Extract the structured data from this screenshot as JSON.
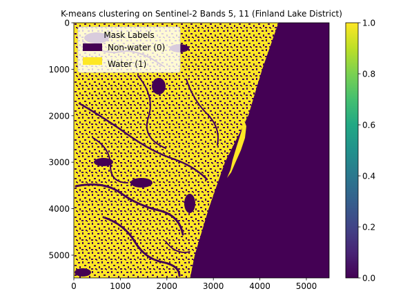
{
  "chart_data": {
    "type": "heatmap",
    "title": "K-means clustering on Sentinel-2 Bands 5, 11 (Finland Lake District)",
    "xlim": [
      0,
      5490
    ],
    "ylim": [
      5490,
      0
    ],
    "x_ticks": [
      0,
      1000,
      2000,
      3000,
      4000,
      5000
    ],
    "y_ticks": [
      0,
      1000,
      2000,
      3000,
      4000,
      5000
    ],
    "x_tick_labels": [
      "0",
      "1000",
      "2000",
      "3000",
      "4000",
      "5000"
    ],
    "y_tick_labels": [
      "0",
      "1000",
      "2000",
      "3000",
      "4000",
      "5000"
    ],
    "no_data_boundary": [
      [
        4400,
        0
      ],
      [
        4050,
        1000
      ],
      [
        3750,
        2000
      ],
      [
        3250,
        3000
      ],
      [
        2900,
        4000
      ],
      [
        2600,
        5000
      ],
      [
        2500,
        5490
      ]
    ],
    "legend": {
      "title": "Mask Labels",
      "placement": "top-left",
      "entries": [
        {
          "label": "Non-water (0)",
          "value": 0,
          "color": "#440154"
        },
        {
          "label": "Water (1)",
          "value": 1,
          "color": "#fde725"
        }
      ]
    },
    "colorbar": {
      "min": 0.0,
      "max": 1.0,
      "ticks": [
        0.0,
        0.2,
        0.4,
        0.6,
        0.8,
        1.0
      ],
      "tick_labels": [
        "0.0",
        "0.2",
        "0.4",
        "0.6",
        "0.8",
        "1.0"
      ],
      "colormap": "viridis"
    },
    "colors": {
      "non_water": "#440154",
      "water": "#fde725"
    }
  }
}
